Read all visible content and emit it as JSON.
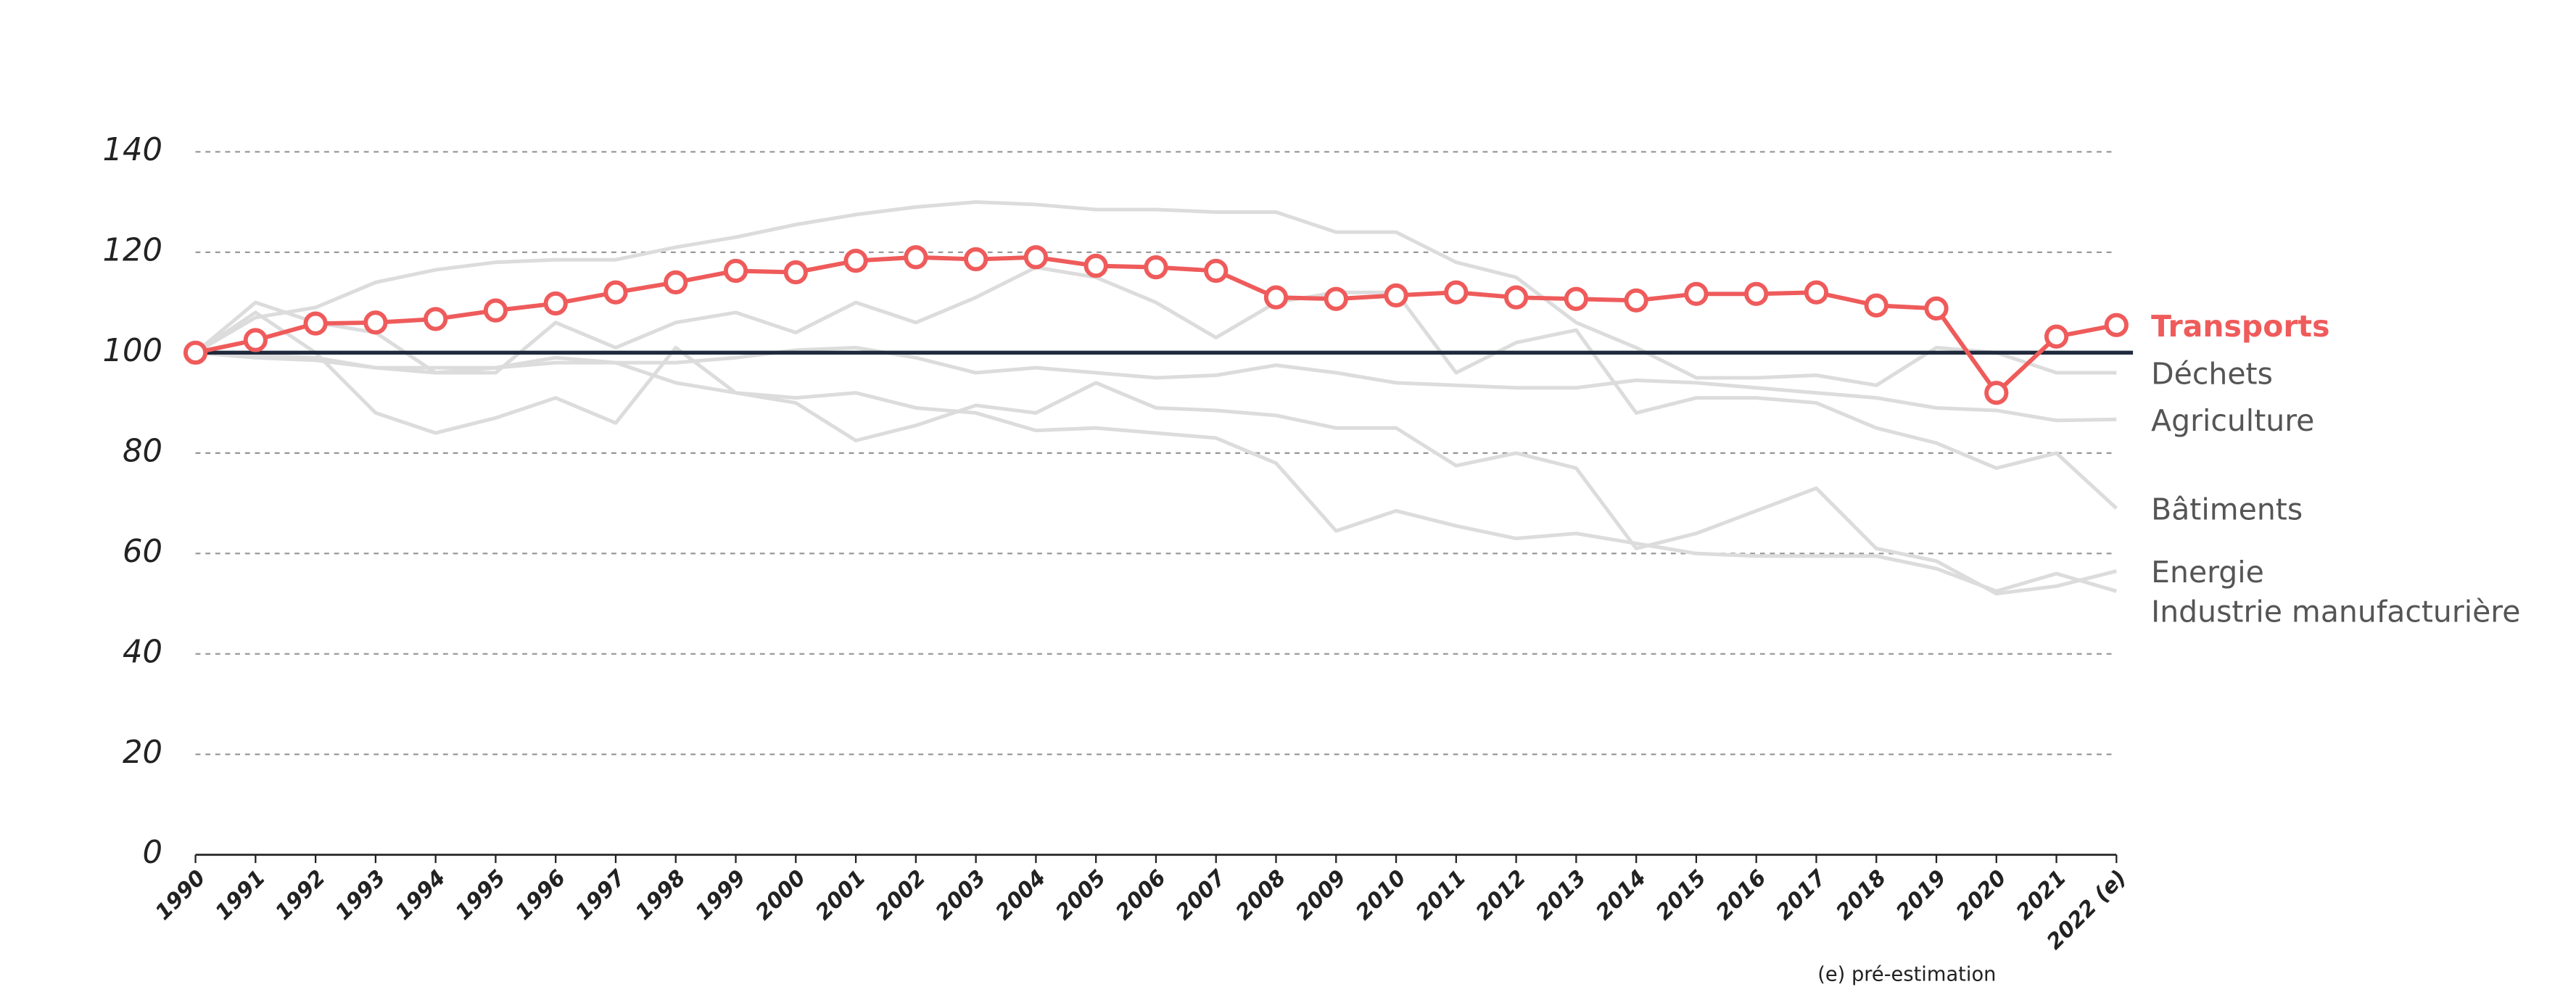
{
  "chart_data": {
    "type": "line",
    "categories": [
      "1990",
      "1991",
      "1992",
      "1993",
      "1994",
      "1995",
      "1996",
      "1997",
      "1998",
      "1999",
      "2000",
      "2001",
      "2002",
      "2003",
      "2004",
      "2005",
      "2006",
      "2007",
      "2008",
      "2009",
      "2010",
      "2011",
      "2012",
      "2013",
      "2014",
      "2015",
      "2016",
      "2017",
      "2018",
      "2019",
      "2020",
      "2021",
      "2022 (e)"
    ],
    "series": [
      {
        "name": "Transports",
        "color": "#ef5b5b",
        "markers": true,
        "values": [
          100,
          102.5,
          105.8,
          106,
          106.7,
          108.4,
          109.8,
          112,
          114,
          116.3,
          116,
          118.3,
          119,
          118.6,
          119,
          117.3,
          117,
          116.3,
          111,
          110.7,
          111.4,
          112,
          111,
          110.7,
          110.4,
          111.7,
          111.7,
          112,
          109.4,
          108.8,
          92,
          103.2,
          105.5
        ]
      },
      {
        "name": "Déchets",
        "color": "#dcdcdc",
        "markers": false,
        "values": [
          100,
          107,
          109,
          114,
          116.5,
          118,
          118.5,
          118.5,
          121,
          123,
          125.5,
          127.5,
          129,
          130,
          129.5,
          128.5,
          128.5,
          128,
          128,
          124,
          124,
          118,
          115,
          106,
          101,
          95,
          95,
          95.5,
          93.5,
          101,
          100,
          96,
          96
        ]
      },
      {
        "name": "Agriculture",
        "color": "#dcdcdc",
        "markers": false,
        "values": [
          100,
          99.5,
          99,
          97,
          97,
          97,
          98,
          98,
          98,
          99,
          100.5,
          101,
          99,
          96,
          97,
          96,
          95,
          95.5,
          97.5,
          96,
          94,
          93.5,
          93,
          93,
          94.5,
          94,
          93,
          92,
          91,
          89,
          88.5,
          86.5,
          86.7
        ]
      },
      {
        "name": "Bâtiments",
        "color": "#dcdcdc",
        "markers": false,
        "values": [
          100,
          110,
          106,
          104,
          96,
          96,
          106,
          101,
          106,
          108,
          104,
          110,
          106,
          111,
          117,
          115,
          110,
          103,
          110,
          112,
          112,
          96,
          102,
          104.5,
          88,
          91,
          91,
          90,
          85,
          82,
          77,
          80,
          69
        ]
      },
      {
        "name": "Energie",
        "color": "#dcdcdc",
        "markers": false,
        "values": [
          100,
          108,
          100,
          88,
          84,
          87,
          91,
          86,
          101,
          92,
          90,
          82.5,
          85.5,
          89.5,
          88,
          94,
          89,
          88.5,
          87.5,
          85,
          85,
          77.5,
          80,
          77,
          61,
          64,
          68.5,
          73,
          61,
          58.5,
          52,
          53.5,
          56.5
        ]
      },
      {
        "name": "Industrie manufacturière",
        "color": "#dcdcdc",
        "markers": false,
        "values": [
          100,
          99,
          98.5,
          97,
          96,
          97,
          99,
          98,
          94,
          92,
          91,
          92,
          89,
          88,
          84.5,
          85,
          84,
          83,
          78,
          64.5,
          68.5,
          65.5,
          63,
          64,
          62,
          60,
          59.5,
          59.5,
          59.5,
          57,
          52.5,
          56,
          52.5
        ]
      }
    ],
    "reference_line": 100,
    "reference_color": "#1f2a3c",
    "ylim": [
      0,
      140
    ],
    "yticks": [
      0,
      20,
      40,
      60,
      80,
      100,
      120,
      140
    ],
    "grid": true,
    "note": "(e) pré-estimation"
  }
}
